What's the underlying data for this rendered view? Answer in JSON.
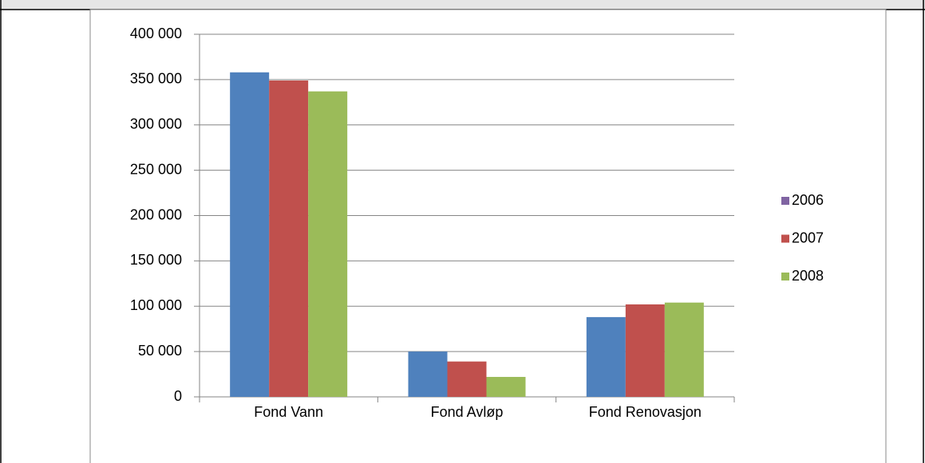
{
  "chart_data": {
    "type": "bar",
    "categories": [
      "Fond Vann",
      "Fond Avløp",
      "Fond Renovasjon"
    ],
    "series": [
      {
        "name": "2006",
        "color": "#4f81bd",
        "legend_color": "#8064a2",
        "values": [
          358000,
          50000,
          88000
        ]
      },
      {
        "name": "2007",
        "color": "#c0504d",
        "legend_color": "#c0504d",
        "values": [
          349000,
          39000,
          102000
        ]
      },
      {
        "name": "2008",
        "color": "#9bbb59",
        "legend_color": "#9bbb59",
        "values": [
          337000,
          22000,
          104000
        ]
      }
    ],
    "ylim": [
      0,
      400000
    ],
    "yticks": [
      0,
      {
        "value": 50000,
        "label": "50 000"
      },
      {
        "value": 100000,
        "label": "100 000"
      },
      {
        "value": 150000,
        "label": "150 000"
      },
      {
        "value": 200000,
        "label": "200 000"
      },
      {
        "value": 250000,
        "label": "250 000"
      },
      {
        "value": 300000,
        "label": "300 000"
      },
      {
        "value": 350000,
        "label": "350 000"
      },
      {
        "value": 400000,
        "label": "400 000"
      }
    ],
    "grid": true,
    "legend": "right"
  }
}
